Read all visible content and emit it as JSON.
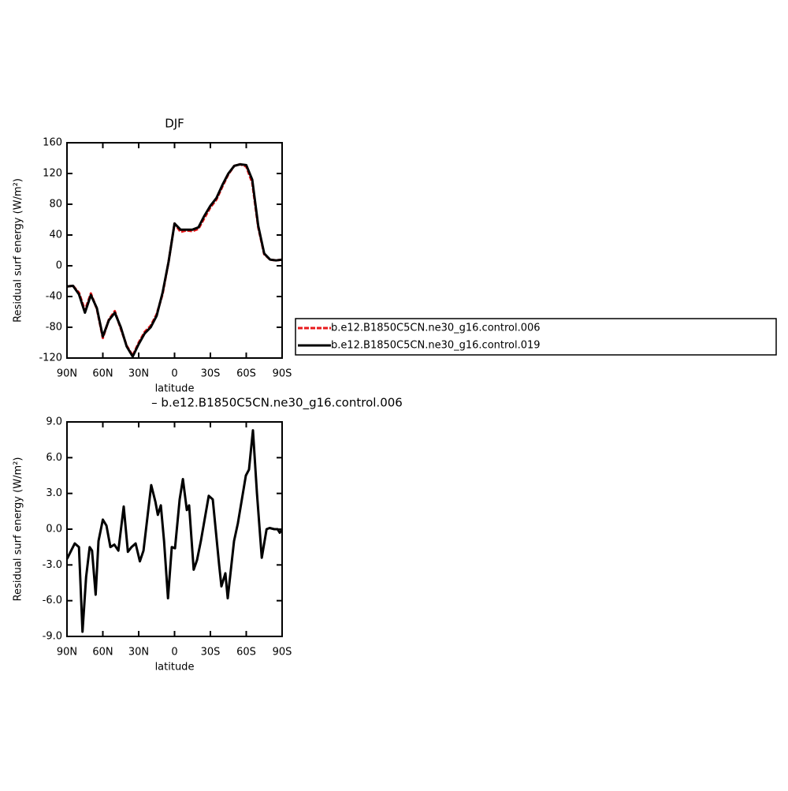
{
  "chart_data": [
    {
      "type": "line",
      "title": "DJF",
      "xlabel": "latitude",
      "ylabel": "Residual surf energy (W/m²)",
      "xlim": [
        90,
        -90
      ],
      "ylim": [
        -120,
        160
      ],
      "xticks": [
        {
          "value": 90,
          "label": "90N"
        },
        {
          "value": 60,
          "label": "60N"
        },
        {
          "value": 30,
          "label": "30N"
        },
        0,
        {
          "value": -30,
          "label": "30S"
        },
        {
          "value": -60,
          "label": "60S"
        },
        {
          "value": -90,
          "label": "90S"
        }
      ],
      "yticks": [
        -120,
        -80,
        -40,
        0,
        40,
        80,
        120,
        160
      ],
      "x": [
        90,
        85,
        80,
        75,
        70,
        65,
        60,
        55,
        50,
        45,
        40,
        35,
        30,
        25,
        20,
        15,
        10,
        5,
        0,
        -5,
        -10,
        -15,
        -20,
        -25,
        -30,
        -35,
        -40,
        -45,
        -50,
        -55,
        -60,
        -65,
        -70,
        -75,
        -80,
        -85,
        -90
      ],
      "series": [
        {
          "name": "b.e12.B1850C5CN.ne30_g16.control.006",
          "color": "#e8191b",
          "line_style": "dashed",
          "values": [
            -27,
            -26,
            -35,
            -58,
            -36,
            -56,
            -94,
            -70,
            -59,
            -82,
            -104,
            -117,
            -100,
            -86,
            -78,
            -63,
            -37,
            5,
            55,
            44,
            46,
            45,
            48,
            62,
            76,
            86,
            103,
            119,
            130,
            132,
            129,
            108,
            50,
            15,
            8,
            7,
            8
          ]
        },
        {
          "name": "b.e12.B1850C5CN.ne30_g16.control.019",
          "color": "#000000",
          "line_style": "solid",
          "values": [
            -27,
            -26,
            -37,
            -61,
            -38,
            -55,
            -92,
            -71,
            -61,
            -80,
            -105,
            -118,
            -102,
            -88,
            -80,
            -65,
            -35,
            5,
            55,
            47,
            47,
            47,
            50,
            65,
            78,
            88,
            105,
            120,
            130,
            132,
            131,
            112,
            52,
            16,
            8,
            7,
            8
          ]
        }
      ],
      "legend": "right"
    },
    {
      "type": "line",
      "title": "– b.e12.B1850C5CN.ne30_g16.control.006",
      "xlabel": "latitude",
      "ylabel": "Residual surf energy (W/m²)",
      "xlim": [
        90,
        -90
      ],
      "ylim": [
        -9,
        9
      ],
      "xticks": [
        {
          "value": 90,
          "label": "90N"
        },
        {
          "value": 60,
          "label": "60N"
        },
        {
          "value": 30,
          "label": "30N"
        },
        0,
        {
          "value": -30,
          "label": "30S"
        },
        {
          "value": -60,
          "label": "60S"
        },
        {
          "value": -90,
          "label": "90S"
        }
      ],
      "yticks": [
        {
          "value": -9,
          "label": "-9.0"
        },
        {
          "value": -6,
          "label": "-6.0"
        },
        {
          "value": -3,
          "label": "-3.0"
        },
        {
          "value": 0,
          "label": "0.0"
        },
        {
          "value": 3,
          "label": "3.0"
        },
        {
          "value": 6,
          "label": "6.0"
        },
        {
          "value": 9,
          "label": "9.0"
        }
      ],
      "x": [
        90,
        87.5,
        83.5,
        80,
        77,
        74,
        71,
        69,
        66,
        63.6,
        60,
        57,
        53.7,
        50.4,
        47,
        42.5,
        39,
        36,
        32.6,
        29,
        26,
        19.5,
        16,
        14,
        11.5,
        8.8,
        5.5,
        2.3,
        -0.4,
        -4.3,
        -7,
        -10.3,
        -12.2,
        -16,
        -18.8,
        -22,
        -28.6,
        -32,
        -37.3,
        -39.2,
        -42.5,
        -44.5,
        -49.8,
        -53,
        -59.7,
        -62.3,
        -64.3,
        -65.6,
        -69,
        -73,
        -77,
        -79.6,
        -83.5,
        -86.2,
        -88,
        -90
      ],
      "series": [
        {
          "name": "b.e12.B1850C5CN.ne30_g16.control.006",
          "color": "#000000",
          "line_style": "solid",
          "values": [
            -2.5,
            -2.0,
            -1.2,
            -1.5,
            -8.6,
            -4.0,
            -1.5,
            -1.8,
            -5.5,
            -1.0,
            0.8,
            0.3,
            -1.5,
            -1.3,
            -1.8,
            1.9,
            -1.9,
            -1.5,
            -1.2,
            -2.7,
            -1.8,
            3.7,
            2.3,
            1.2,
            2.0,
            -1.0,
            -5.8,
            -1.5,
            -1.6,
            2.5,
            4.2,
            1.6,
            2.0,
            -3.4,
            -2.6,
            -1.0,
            2.8,
            2.5,
            -3.0,
            -4.8,
            -3.7,
            -5.8,
            -1.0,
            0.5,
            4.5,
            5.0,
            7.0,
            8.3,
            3.0,
            -2.4,
            0.0,
            0.1,
            0.0,
            0.0,
            -0.3,
            0.0
          ]
        }
      ]
    }
  ]
}
